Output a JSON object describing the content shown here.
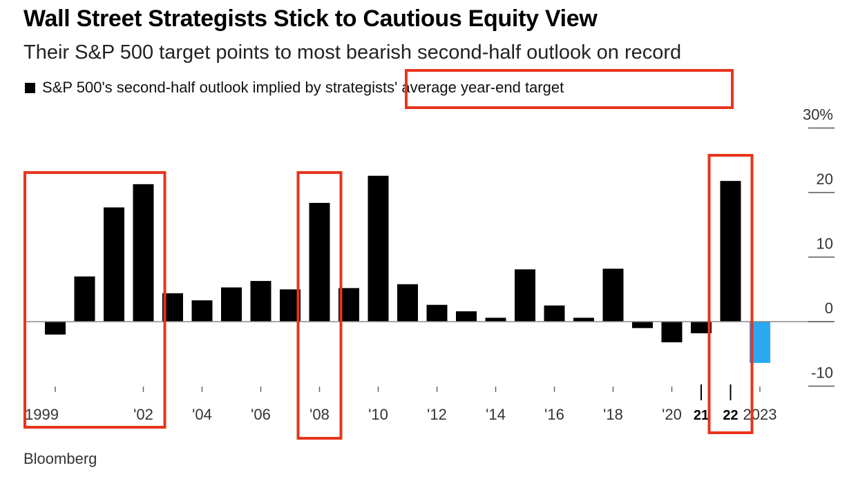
{
  "title": "Wall Street Strategists Stick to Cautious Equity View",
  "subtitle": "Their S&P 500 target points to most bearish second-half outlook on record",
  "legend_label": "S&P 500's second-half outlook implied by strategists' average year-end target",
  "source": "Bloomberg",
  "colors": {
    "bar": "#000000",
    "highlight": "#2aa8f2",
    "annotation": "#e8341c",
    "axis": "#888888"
  },
  "chart_data": {
    "type": "bar",
    "title": "Wall Street Strategists Stick to Cautious Equity View",
    "subtitle": "Their S&P 500 target points to most bearish second-half outlook on record",
    "legend": [
      "S&P 500's second-half outlook implied by strategists' average year-end target"
    ],
    "categories": [
      "1999",
      "2000",
      "2001",
      "2002",
      "2003",
      "2004",
      "2005",
      "2006",
      "2007",
      "2008",
      "2009",
      "2010",
      "2011",
      "2012",
      "2013",
      "2014",
      "2015",
      "2016",
      "2017",
      "2018",
      "2019",
      "2020",
      "2021",
      "2022",
      "2023"
    ],
    "values": [
      -2.0,
      7.0,
      17.7,
      21.3,
      4.4,
      3.3,
      5.3,
      6.3,
      5.0,
      18.4,
      5.2,
      22.6,
      5.8,
      2.6,
      1.6,
      0.6,
      8.1,
      2.5,
      0.6,
      8.2,
      -1.0,
      -3.2,
      -1.8,
      21.8,
      -6.4
    ],
    "highlight_category": "2023",
    "x_tick_labels": [
      "1999",
      "'02",
      "'04",
      "'06",
      "'08",
      "'10",
      "'12",
      "'14",
      "'16",
      "'18",
      "'20",
      "21",
      "22",
      "2023"
    ],
    "y_ticks": [
      30,
      20,
      10,
      0,
      -10
    ],
    "y_tick_labels": [
      "30%",
      "20",
      "10",
      "0",
      "-10"
    ],
    "ylim": [
      -10,
      30
    ],
    "xlabel": "",
    "ylabel": "",
    "grid": false,
    "annotations": [
      {
        "type": "box",
        "from": "1999",
        "to": "2002"
      },
      {
        "type": "box",
        "from": "2008",
        "to": "2008"
      },
      {
        "type": "box",
        "from": "2022",
        "to": "2022"
      },
      {
        "type": "box",
        "target": "legend_label_suffix",
        "text": "strategists' average year-end target"
      }
    ]
  }
}
